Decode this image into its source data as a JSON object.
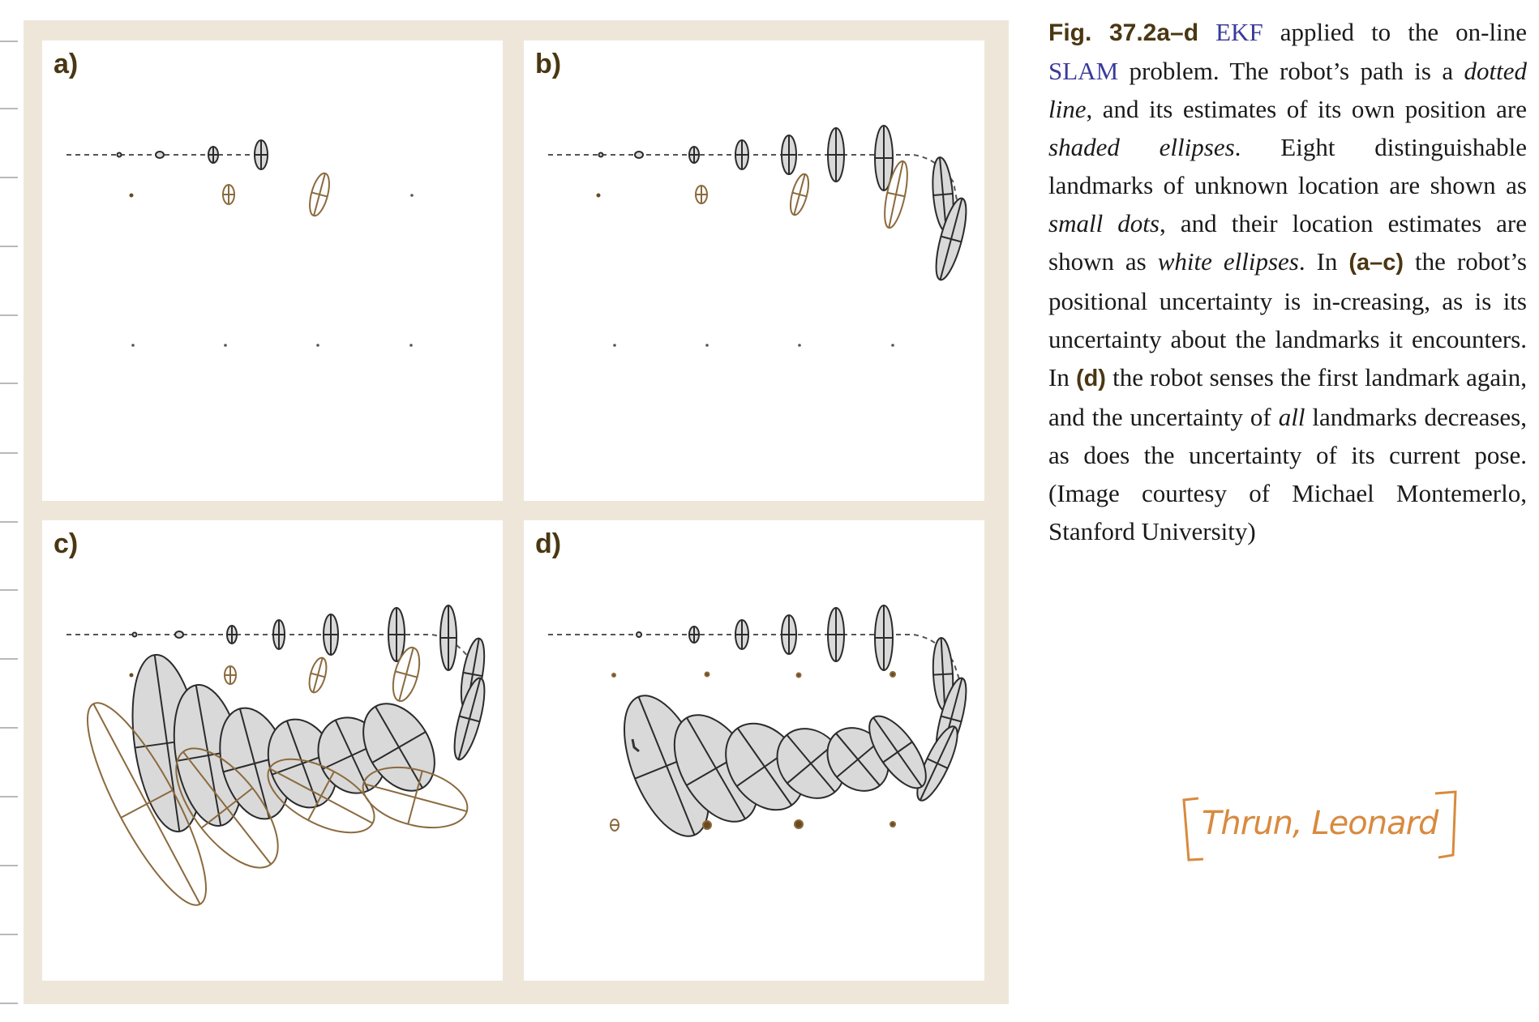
{
  "figure": {
    "panels": [
      {
        "id": "a",
        "label": "a)"
      },
      {
        "id": "b",
        "label": "b)"
      },
      {
        "id": "c",
        "label": "c)"
      },
      {
        "id": "d",
        "label": "d)"
      }
    ],
    "colors": {
      "frame": "#efe6da",
      "robot_ellipse_fill": "#d9d9d9",
      "robot_ellipse_stroke": "#2b2b2b",
      "landmark_ellipse_stroke": "#8b6a3e",
      "path": "#555555"
    }
  },
  "caption": {
    "fig_label": "Fig. 37.2a–d",
    "t1": " ",
    "ekf": "EKF",
    "t2": " applied to the on-line ",
    "slam": "SLAM",
    "t3": " problem. The robot’s path is a ",
    "dotted_line": "dotted line",
    "t4": ", and its estimates of its own position are ",
    "shaded_ellipses": "shaded ellipses",
    "t5": ". Eight distinguishable landmarks of unknown location are shown as ",
    "small_dots": "small dots",
    "t6": ", and their location estimates are shown as ",
    "white_ellipses": "white ellipses",
    "t7": ". In ",
    "ref_ac": "(a–c)",
    "t8": " the robot’s positional uncertainty is in-creasing, as is its uncertainty about the landmarks it encounters. In ",
    "ref_d": "(d)",
    "t9": " the robot senses the first landmark again, and the uncertainty of ",
    "all": "all",
    "t10": " landmarks decreases, as does the uncertainty of its current pose. (Image courtesy of Michael Montemerlo, Stanford University)"
  },
  "annotation": {
    "text": "Thrun, Leonard"
  }
}
